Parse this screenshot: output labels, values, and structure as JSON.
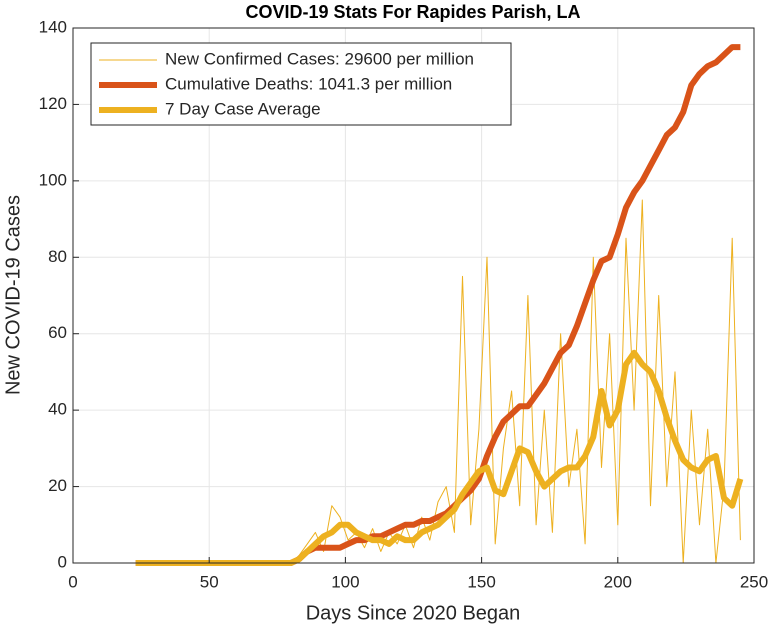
{
  "chart_data": {
    "type": "line",
    "title": "COVID-19 Stats For Rapides Parish, LA",
    "xlabel": "Days Since 2020 Began",
    "ylabel": "New COVID-19 Cases",
    "xlim": [
      0,
      250
    ],
    "xticks": [
      0,
      50,
      100,
      150,
      200,
      250
    ],
    "ylim": [
      0,
      140
    ],
    "yticks": [
      0,
      20,
      40,
      60,
      80,
      100,
      120,
      140
    ],
    "grid": true,
    "legend": "upper left",
    "x": [
      23,
      26,
      29,
      32,
      35,
      38,
      41,
      44,
      47,
      50,
      53,
      56,
      59,
      62,
      65,
      68,
      71,
      74,
      77,
      80,
      83,
      86,
      89,
      92,
      95,
      98,
      101,
      104,
      107,
      110,
      113,
      116,
      119,
      122,
      125,
      128,
      131,
      134,
      137,
      140,
      143,
      146,
      149,
      152,
      155,
      158,
      161,
      164,
      167,
      170,
      173,
      176,
      179,
      182,
      185,
      188,
      191,
      194,
      197,
      200,
      203,
      206,
      209,
      212,
      215,
      218,
      221,
      224,
      227,
      230,
      233,
      236,
      239,
      242,
      245
    ],
    "series": [
      {
        "name": "New Confirmed Cases: 29600 per million",
        "color": "#EDB120",
        "width": 1,
        "values": [
          0,
          0,
          0,
          0,
          0,
          0,
          0,
          0,
          0,
          0,
          0,
          0,
          0,
          0,
          0,
          0,
          0,
          0,
          0,
          0,
          2,
          5,
          8,
          3,
          15,
          12,
          6,
          8,
          4,
          9,
          3,
          8,
          5,
          10,
          4,
          12,
          6,
          16,
          20,
          8,
          75,
          10,
          35,
          80,
          5,
          30,
          45,
          15,
          70,
          10,
          40,
          8,
          60,
          20,
          35,
          5,
          80,
          25,
          60,
          10,
          85,
          40,
          95,
          15,
          70,
          20,
          50,
          0,
          40,
          10,
          35,
          0,
          20,
          85,
          6
        ]
      },
      {
        "name": "Cumulative Deaths: 1041.3 per million",
        "color": "#D95319",
        "width": 6,
        "values": [
          0,
          0,
          0,
          0,
          0,
          0,
          0,
          0,
          0,
          0,
          0,
          0,
          0,
          0,
          0,
          0,
          0,
          0,
          0,
          0,
          1,
          3,
          4,
          4,
          4,
          4,
          5,
          6,
          6,
          7,
          7,
          8,
          9,
          10,
          10,
          11,
          11,
          12,
          13,
          15,
          17,
          19,
          22,
          28,
          33,
          37,
          39,
          41,
          41,
          44,
          47,
          51,
          55,
          57,
          62,
          68,
          74,
          79,
          80,
          86,
          93,
          97,
          100,
          104,
          108,
          112,
          114,
          118,
          125,
          128,
          130,
          131,
          133,
          135,
          135
        ]
      },
      {
        "name": "7 Day Case Average",
        "color": "#EDB120",
        "width": 6,
        "values": [
          0,
          0,
          0,
          0,
          0,
          0,
          0,
          0,
          0,
          0,
          0,
          0,
          0,
          0,
          0,
          0,
          0,
          0,
          0,
          0,
          1,
          3,
          5,
          7,
          8,
          10,
          10,
          8,
          7,
          6,
          6,
          5,
          7,
          6,
          6,
          8,
          9,
          10,
          12,
          14,
          18,
          21,
          24,
          25,
          19,
          18,
          24,
          30,
          29,
          24,
          20,
          22,
          24,
          25,
          25,
          28,
          33,
          45,
          36,
          40,
          52,
          55,
          52,
          50,
          45,
          38,
          32,
          27,
          25,
          24,
          27,
          28,
          17,
          15,
          22
        ]
      }
    ]
  }
}
